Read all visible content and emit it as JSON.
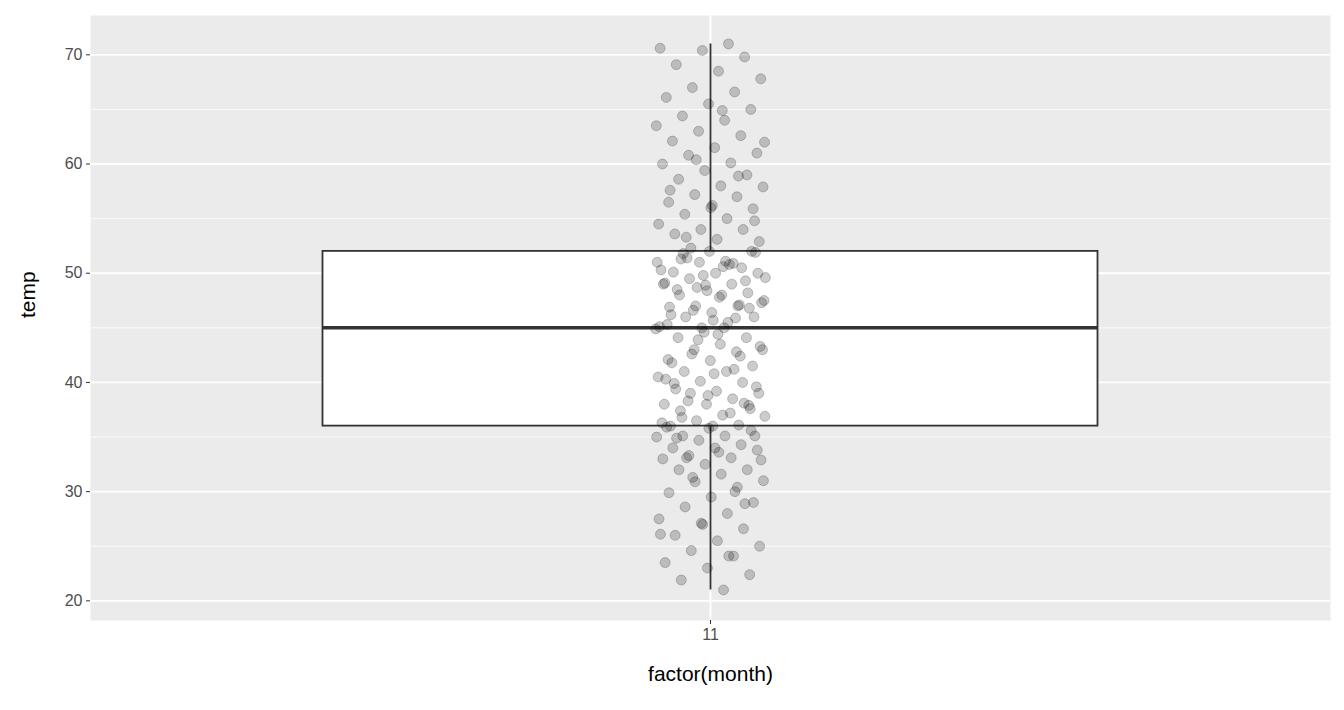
{
  "chart_data": {
    "type": "boxplot",
    "x_label": "factor(month)",
    "y_label": "temp",
    "categories": [
      "11"
    ],
    "box": [
      {
        "min": 21.0,
        "q1": 36.0,
        "median": 45.0,
        "q3": 52.0,
        "max": 71.0
      }
    ],
    "values": [
      [
        21.0,
        21.9,
        22.4,
        23.0,
        23.5,
        24.1,
        24.6,
        25.0,
        25.5,
        26.0,
        26.6,
        27.1,
        27.5,
        28.0,
        28.6,
        29.0,
        29.5,
        29.9,
        30.4,
        30.9,
        31.0,
        31.6,
        32.0,
        32.0,
        32.5,
        33.0,
        33.1,
        33.3,
        33.8,
        34.0,
        34.0,
        34.3,
        34.7,
        35.0,
        35.1,
        35.1,
        35.6,
        35.8,
        35.9,
        30.0,
        31.3,
        32.9,
        33.6,
        34.9,
        28.9,
        27.0,
        26.1,
        24.1,
        33.1,
        35.1,
        36.0,
        36.0,
        36.1,
        36.5,
        36.9,
        37.0,
        37.4,
        37.9,
        38.0,
        38.0,
        38.5,
        39.0,
        39.0,
        39.2,
        39.9,
        40.0,
        40.1,
        40.5,
        41.0,
        41.0,
        41.5,
        42.0,
        42.1,
        42.8,
        43.0,
        43.0,
        43.5,
        44.1,
        44.1,
        44.6,
        36.3,
        37.2,
        38.3,
        39.6,
        40.8,
        41.8,
        42.4,
        43.9,
        44.9,
        45.0,
        36.8,
        37.6,
        38.8,
        40.3,
        41.2,
        42.6,
        43.3,
        44.4,
        39.4,
        38.1,
        45.0,
        45.1,
        45.5,
        46.0,
        46.0,
        46.4,
        46.9,
        47.0,
        47.0,
        47.5,
        48.0,
        48.0,
        48.2,
        48.9,
        49.0,
        49.0,
        49.5,
        50.0,
        50.0,
        50.1,
        50.5,
        51.0,
        51.0,
        51.1,
        51.8,
        52.0,
        52.0,
        45.3,
        45.9,
        46.6,
        47.3,
        47.8,
        48.5,
        49.3,
        49.8,
        50.3,
        50.8,
        51.4,
        51.9,
        45.7,
        46.2,
        47.1,
        48.7,
        49.6,
        50.6,
        51.3,
        46.8,
        48.4,
        49.1,
        50.9,
        52.3,
        52.9,
        53.1,
        53.6,
        54.0,
        54.0,
        54.5,
        55.0,
        55.4,
        55.9,
        56.0,
        56.5,
        57.0,
        57.2,
        57.9,
        58.0,
        58.6,
        59.0,
        59.4,
        60.0,
        60.1,
        60.8,
        61.0,
        61.5,
        62.1,
        62.6,
        63.0,
        63.5,
        64.0,
        64.4,
        65.0,
        65.5,
        66.1,
        66.6,
        67.0,
        67.8,
        68.5,
        69.1,
        69.8,
        70.4,
        70.6,
        71.0,
        53.3,
        54.8,
        56.2,
        57.6,
        58.9,
        60.4,
        62.0,
        64.9
      ]
    ],
    "color": "#000000",
    "ylim": [
      18.2,
      73.6
    ],
    "yticks": [
      20,
      30,
      40,
      50,
      60,
      70
    ],
    "grid": true
  }
}
